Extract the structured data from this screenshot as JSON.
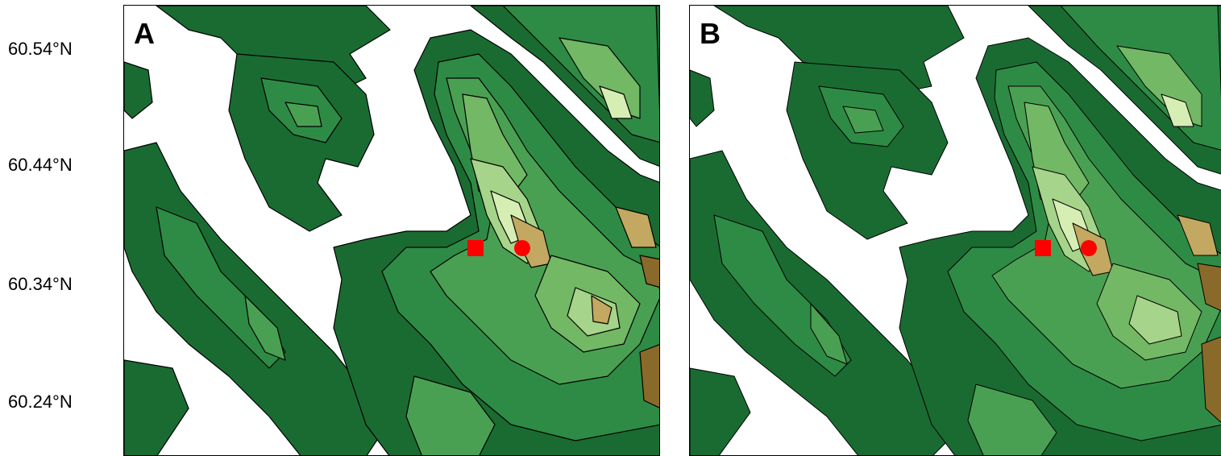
{
  "latitude_labels": [
    "60.54°N",
    "60.44°N",
    "60.34°N",
    "60.24°N"
  ],
  "panels": [
    {
      "letter": "A"
    },
    {
      "letter": "B"
    }
  ],
  "markers": {
    "square_color": "#ff0000",
    "circle_color": "#ff0000"
  },
  "terrain_colors": [
    "#ffffff",
    "#1a6b32",
    "#2e8b45",
    "#4aa052",
    "#72b865",
    "#a6d48a",
    "#d6edb4",
    "#c2a860",
    "#8a6a2a"
  ]
}
